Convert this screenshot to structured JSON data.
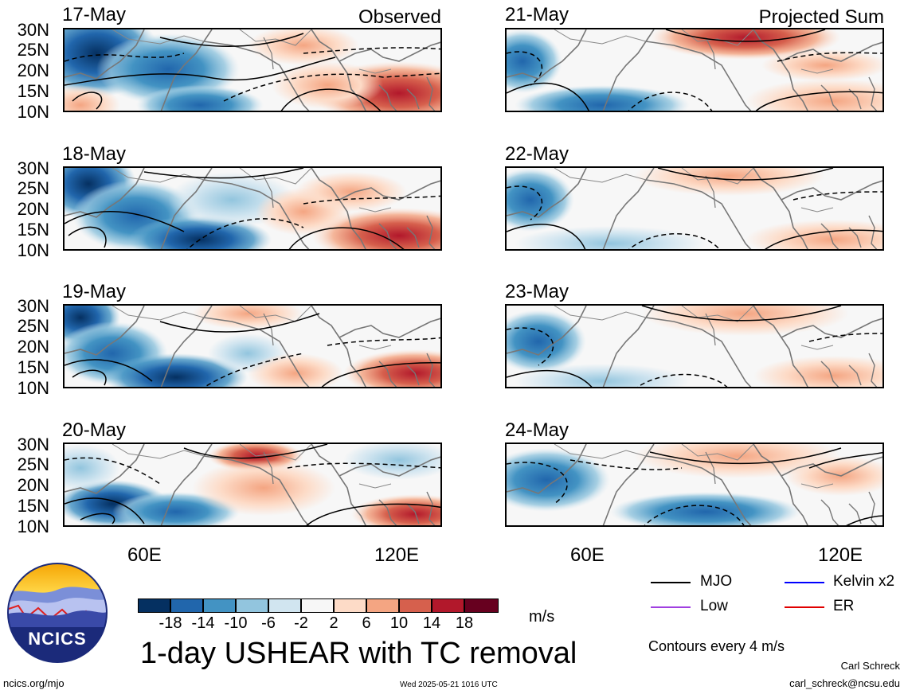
{
  "panels_left": [
    {
      "date": "17-May",
      "header_right": "Observed"
    },
    {
      "date": "18-May",
      "header_right": ""
    },
    {
      "date": "19-May",
      "header_right": ""
    },
    {
      "date": "20-May",
      "header_right": ""
    }
  ],
  "panels_right": [
    {
      "date": "21-May",
      "header_right": "Projected Sum"
    },
    {
      "date": "22-May",
      "header_right": ""
    },
    {
      "date": "23-May",
      "header_right": ""
    },
    {
      "date": "24-May",
      "header_right": ""
    }
  ],
  "lat_labels": [
    "30N",
    "25N",
    "20N",
    "15N",
    "10N"
  ],
  "lon_labels": [
    "60E",
    "120E"
  ],
  "colorbar": {
    "colors": [
      "#053061",
      "#2166ac",
      "#4393c3",
      "#92c5de",
      "#d1e5f0",
      "#f7f7f7",
      "#fddbc7",
      "#f4a582",
      "#d6604d",
      "#b2182b",
      "#67001f"
    ],
    "ticks": [
      "-18",
      "-14",
      "-10",
      "-6",
      "-2",
      "2",
      "6",
      "10",
      "14",
      "18"
    ],
    "units": "m/s"
  },
  "title": "1-day USHEAR with TC removal",
  "legend": {
    "items": [
      {
        "label": "MJO",
        "color": "#000000"
      },
      {
        "label": "Kelvin x2",
        "color": "#0000ff"
      },
      {
        "label": "Low",
        "color": "#a040e0"
      },
      {
        "label": "ER",
        "color": "#e00000"
      }
    ],
    "contour_note": "Contours every 4 m/s"
  },
  "logo": {
    "text": "NCICS"
  },
  "footer": {
    "url": "ncics.org/mjo",
    "timestamp": "Wed 2025-05-21 1016 UTC",
    "author": "Carl Schreck",
    "email": "carl_schreck@ncsu.edu"
  }
}
